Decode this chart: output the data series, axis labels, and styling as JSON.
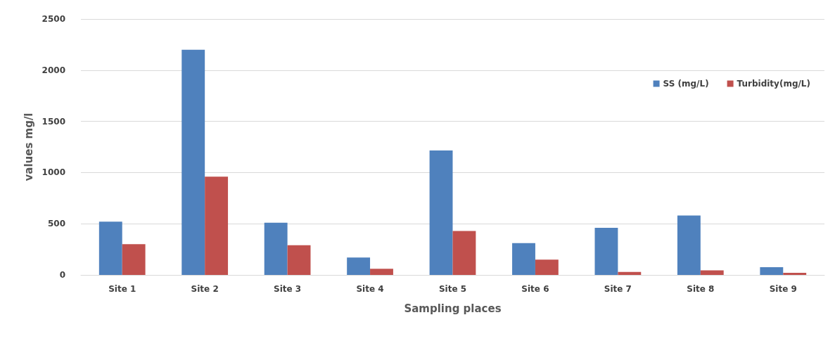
{
  "chart_data": {
    "type": "bar",
    "xlabel": "Sampling places",
    "ylabel": "values mg/l",
    "categories": [
      "Site 1",
      "Site 2",
      "Site 3",
      "Site 4",
      "Site 5",
      "Site 6",
      "Site 7",
      "Site 8",
      "Site 9"
    ],
    "series": [
      {
        "name": "SS (mg/L)",
        "color": "#4f81bd",
        "values": [
          520,
          2200,
          510,
          170,
          1215,
          310,
          460,
          580,
          75
        ]
      },
      {
        "name": "Turbidity(mg/L)",
        "color": "#c0504d",
        "values": [
          300,
          960,
          290,
          60,
          430,
          150,
          30,
          45,
          20
        ]
      }
    ],
    "ylim": [
      0,
      2500
    ],
    "yticks": [
      0,
      500,
      1000,
      1500,
      2000,
      2500
    ],
    "grid": "y",
    "legend": "top right"
  }
}
